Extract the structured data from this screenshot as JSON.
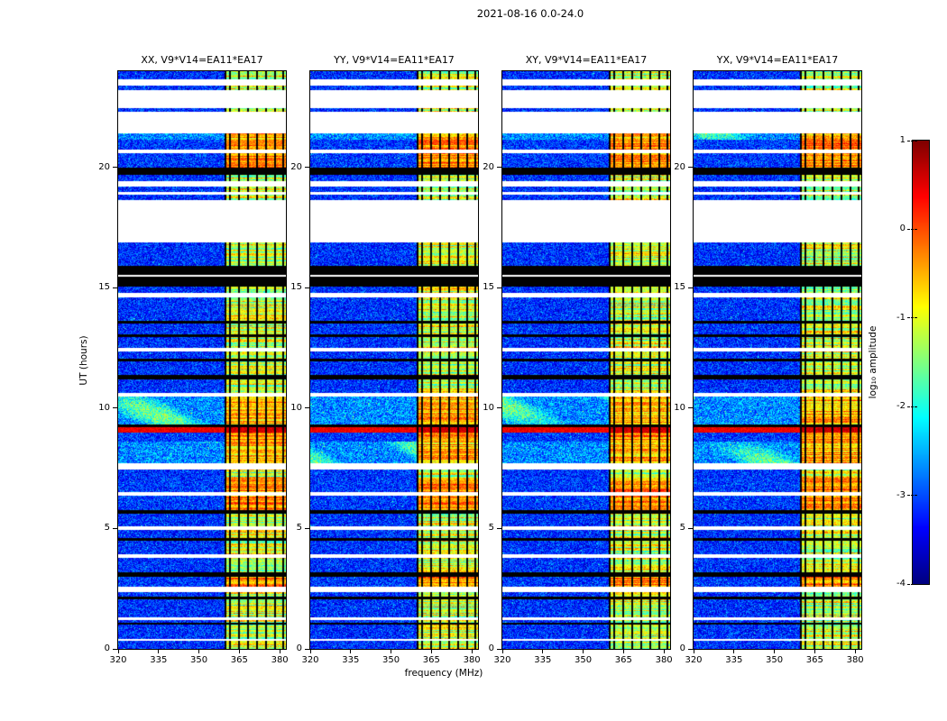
{
  "figure": {
    "title": "2021-08-16 0.0-24.0",
    "background_color": "#ffffff",
    "frame_color": "#000000"
  },
  "chart_data": {
    "type": "heatmap",
    "title": "2021-08-16 0.0-24.0",
    "xlabel": "frequency (MHz)",
    "ylabel": "UT (hours)",
    "panels": [
      {
        "label": "XX, V9*V14=EA11*EA17",
        "seed": 11
      },
      {
        "label": "YY, V9*V14=EA11*EA17",
        "seed": 23
      },
      {
        "label": "XY, V9*V14=EA11*EA17",
        "seed": 37
      },
      {
        "label": "YX, V9*V14=EA11*EA17",
        "seed": 51
      }
    ],
    "x_range_mhz": [
      320,
      382.3
    ],
    "x_ticks": [
      320,
      335,
      350,
      365,
      380
    ],
    "y_range_hours": [
      0,
      24
    ],
    "y_ticks": [
      0,
      5,
      10,
      15,
      20
    ],
    "colorbar": {
      "label": "log₁₀ amplitude",
      "range": [
        -4,
        1
      ],
      "ticks": [
        1,
        0,
        -1,
        -2,
        -3,
        -4
      ],
      "colormap": "jet"
    },
    "rfi_band_mhz": [
      359.5,
      382.3
    ],
    "flagged_channels_mhz": [
      359.9,
      361.5,
      364.8,
      368.2,
      371.6,
      375.0,
      378.4,
      381.3
    ],
    "band_types": {
      "n": "blue noise scan with yellow-green RFI band",
      "s": "blue noise scan with strong orange-red RFI band",
      "c": "scan with cyan patches and strong RFI band",
      "b": "broadband red burst across all frequencies",
      "k": "flagged data (black)",
      "w": "no data (white gap)"
    },
    "time_bands": [
      [
        0.0,
        0.32,
        "n"
      ],
      [
        0.32,
        0.42,
        "w"
      ],
      [
        0.42,
        1.02,
        "n"
      ],
      [
        1.02,
        1.1,
        "k"
      ],
      [
        1.1,
        1.18,
        "n"
      ],
      [
        1.18,
        1.32,
        "w"
      ],
      [
        1.32,
        2.05,
        "n"
      ],
      [
        2.05,
        2.16,
        "k"
      ],
      [
        2.16,
        2.36,
        "n"
      ],
      [
        2.36,
        2.6,
        "w"
      ],
      [
        2.6,
        3.0,
        "s"
      ],
      [
        3.0,
        3.2,
        "k"
      ],
      [
        3.2,
        3.78,
        "n"
      ],
      [
        3.78,
        3.92,
        "w"
      ],
      [
        3.92,
        4.5,
        "n"
      ],
      [
        4.5,
        4.62,
        "k"
      ],
      [
        4.62,
        4.95,
        "n"
      ],
      [
        4.95,
        5.1,
        "w"
      ],
      [
        5.1,
        5.62,
        "n"
      ],
      [
        5.62,
        5.76,
        "k"
      ],
      [
        5.76,
        6.35,
        "s"
      ],
      [
        6.35,
        6.5,
        "w"
      ],
      [
        6.5,
        7.1,
        "s"
      ],
      [
        7.1,
        7.45,
        "n"
      ],
      [
        7.45,
        7.7,
        "w"
      ],
      [
        7.7,
        8.6,
        "c"
      ],
      [
        8.6,
        9.0,
        "s"
      ],
      [
        9.0,
        9.2,
        "b"
      ],
      [
        9.2,
        9.32,
        "k"
      ],
      [
        9.32,
        10.5,
        "c"
      ],
      [
        10.5,
        10.62,
        "w"
      ],
      [
        10.62,
        11.2,
        "n"
      ],
      [
        11.2,
        11.38,
        "k"
      ],
      [
        11.38,
        11.95,
        "n"
      ],
      [
        11.95,
        12.05,
        "k"
      ],
      [
        12.05,
        12.35,
        "n"
      ],
      [
        12.35,
        12.5,
        "w"
      ],
      [
        12.5,
        12.95,
        "n"
      ],
      [
        12.95,
        13.05,
        "k"
      ],
      [
        13.05,
        13.5,
        "n"
      ],
      [
        13.5,
        13.62,
        "k"
      ],
      [
        13.62,
        14.6,
        "n"
      ],
      [
        14.6,
        14.8,
        "w"
      ],
      [
        14.8,
        15.05,
        "n"
      ],
      [
        15.05,
        15.45,
        "k"
      ],
      [
        15.45,
        15.55,
        "w"
      ],
      [
        15.55,
        15.9,
        "k"
      ],
      [
        15.9,
        16.9,
        "n"
      ],
      [
        16.9,
        18.65,
        "w"
      ],
      [
        18.65,
        18.88,
        "n"
      ],
      [
        18.88,
        19.0,
        "w"
      ],
      [
        19.0,
        19.22,
        "n"
      ],
      [
        19.22,
        19.45,
        "w"
      ],
      [
        19.45,
        19.7,
        "n"
      ],
      [
        19.7,
        20.0,
        "k"
      ],
      [
        20.0,
        20.6,
        "s"
      ],
      [
        20.6,
        20.75,
        "w"
      ],
      [
        20.75,
        21.15,
        "s"
      ],
      [
        21.15,
        21.4,
        "c"
      ],
      [
        21.4,
        22.3,
        "w"
      ],
      [
        22.3,
        22.45,
        "n"
      ],
      [
        22.45,
        23.2,
        "w"
      ],
      [
        23.2,
        23.4,
        "n"
      ],
      [
        23.4,
        23.65,
        "w"
      ],
      [
        23.65,
        24.0,
        "n"
      ]
    ]
  }
}
